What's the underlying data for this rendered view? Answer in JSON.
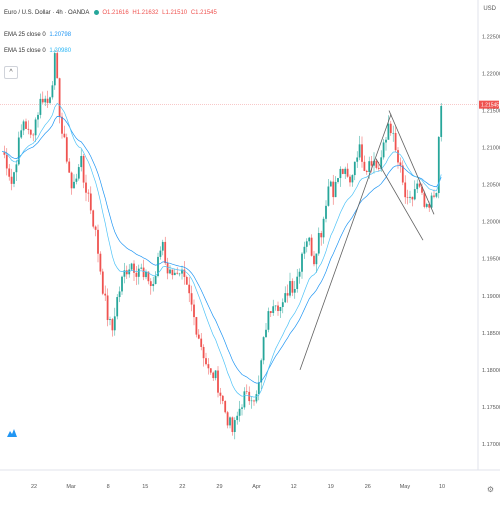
{
  "chart_data": {
    "type": "candlestick",
    "title": "Euro / U.S. Dollar · 4h · OANDA",
    "ohlc_header": {
      "o": "O1.21616",
      "h": "H1.21632",
      "l": "L1.21510",
      "c": "C1.21545"
    },
    "indicators": [
      {
        "name": "EMA 25 close 0",
        "value": "1.20798",
        "color": "#2196f3"
      },
      {
        "name": "EMA 15 close 0",
        "value": "1.20980",
        "color": "#4fc3f7"
      }
    ],
    "currency": "USD",
    "y_ticks": [
      "1.22500",
      "1.22000",
      "1.21500",
      "1.21000",
      "1.20500",
      "1.20000",
      "1.19500",
      "1.19000",
      "1.18500",
      "1.18000",
      "1.17500",
      "1.17000"
    ],
    "ylim": [
      1.1685,
      1.2275
    ],
    "x_ticks": [
      "22",
      "Mar",
      "8",
      "15",
      "22",
      "29",
      "Apr",
      "12",
      "19",
      "26",
      "May",
      "10"
    ],
    "colors": {
      "up": "#26a69a",
      "down": "#ef5350",
      "price_line": "#f4a6a6"
    },
    "current_price": 1.2158,
    "path_points": [
      [
        0,
        1.21
      ],
      [
        6,
        1.2085
      ],
      [
        12,
        1.205
      ],
      [
        18,
        1.21
      ],
      [
        24,
        1.214
      ],
      [
        30,
        1.211
      ],
      [
        36,
        1.214
      ],
      [
        42,
        1.217
      ],
      [
        48,
        1.216
      ],
      [
        52,
        1.219
      ],
      [
        55,
        1.222
      ],
      [
        58,
        1.217
      ],
      [
        62,
        1.212
      ],
      [
        68,
        1.208
      ],
      [
        72,
        1.204
      ],
      [
        76,
        1.206
      ],
      [
        80,
        1.209
      ],
      [
        84,
        1.205
      ],
      [
        88,
        1.204
      ],
      [
        92,
        1.201
      ],
      [
        96,
        1.198
      ],
      [
        100,
        1.194
      ],
      [
        104,
        1.19
      ],
      [
        108,
        1.187
      ],
      [
        112,
        1.185
      ],
      [
        116,
        1.189
      ],
      [
        120,
        1.191
      ],
      [
        124,
        1.193
      ],
      [
        128,
        1.194
      ],
      [
        132,
        1.1945
      ],
      [
        136,
        1.1935
      ],
      [
        140,
        1.194
      ],
      [
        144,
        1.192
      ],
      [
        148,
        1.1925
      ],
      [
        152,
        1.191
      ],
      [
        156,
        1.193
      ],
      [
        160,
        1.196
      ],
      [
        163,
        1.1975
      ],
      [
        166,
        1.194
      ],
      [
        170,
        1.193
      ],
      [
        174,
        1.194
      ],
      [
        178,
        1.192
      ],
      [
        182,
        1.1925
      ],
      [
        186,
        1.191
      ],
      [
        190,
        1.1895
      ],
      [
        194,
        1.187
      ],
      [
        198,
        1.185
      ],
      [
        202,
        1.183
      ],
      [
        206,
        1.181
      ],
      [
        210,
        1.179
      ],
      [
        214,
        1.1795
      ],
      [
        218,
        1.178
      ],
      [
        222,
        1.176
      ],
      [
        226,
        1.174
      ],
      [
        230,
        1.1725
      ],
      [
        233,
        1.1715
      ],
      [
        236,
        1.173
      ],
      [
        240,
        1.175
      ],
      [
        244,
        1.1765
      ],
      [
        248,
        1.176
      ],
      [
        252,
        1.177
      ],
      [
        256,
        1.176
      ],
      [
        259,
        1.178
      ],
      [
        262,
        1.182
      ],
      [
        266,
        1.186
      ],
      [
        270,
        1.188
      ],
      [
        274,
        1.19
      ],
      [
        278,
        1.189
      ],
      [
        282,
        1.188
      ],
      [
        286,
        1.19
      ],
      [
        290,
        1.192
      ],
      [
        294,
        1.191
      ],
      [
        298,
        1.193
      ],
      [
        302,
        1.196
      ],
      [
        306,
        1.198
      ],
      [
        310,
        1.197
      ],
      [
        314,
        1.195
      ],
      [
        318,
        1.198
      ],
      [
        322,
        1.199
      ],
      [
        326,
        1.203
      ],
      [
        330,
        1.206
      ],
      [
        334,
        1.204
      ],
      [
        338,
        1.206
      ],
      [
        342,
        1.207
      ],
      [
        346,
        1.206
      ],
      [
        350,
        1.205
      ],
      [
        354,
        1.208
      ],
      [
        358,
        1.21
      ],
      [
        362,
        1.209
      ],
      [
        366,
        1.207
      ],
      [
        370,
        1.209
      ],
      [
        374,
        1.208
      ],
      [
        378,
        1.207
      ],
      [
        382,
        1.209
      ],
      [
        386,
        1.211
      ],
      [
        389,
        1.214
      ],
      [
        392,
        1.212
      ],
      [
        396,
        1.209
      ],
      [
        400,
        1.207
      ],
      [
        404,
        1.204
      ],
      [
        408,
        1.202
      ],
      [
        412,
        1.203
      ],
      [
        416,
        1.205
      ],
      [
        420,
        1.204
      ],
      [
        424,
        1.202
      ],
      [
        428,
        1.201
      ],
      [
        432,
        1.203
      ],
      [
        436,
        1.204
      ],
      [
        438,
        1.208
      ],
      [
        440,
        1.214
      ],
      [
        442,
        1.2165
      ]
    ]
  }
}
